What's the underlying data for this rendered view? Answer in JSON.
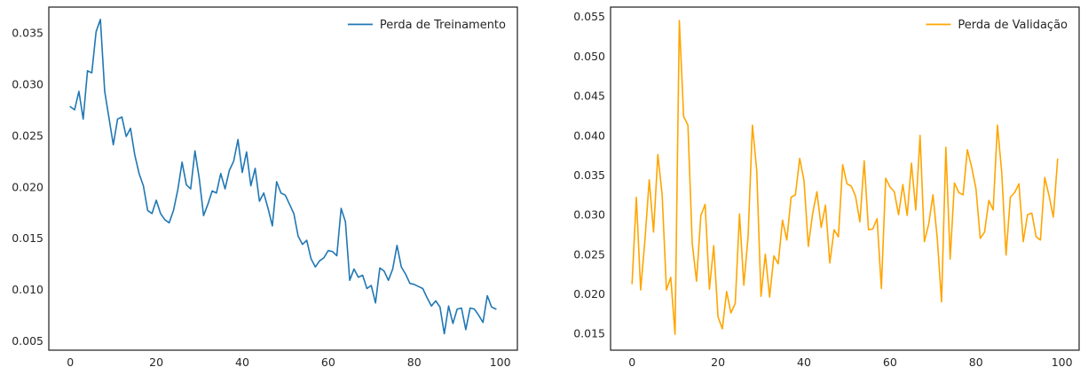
{
  "chart_data": [
    {
      "type": "line",
      "title": "",
      "xlabel": "",
      "ylabel": "",
      "xlim": [
        -5,
        104
      ],
      "ylim": [
        0.0041,
        0.0375
      ],
      "xticks": [
        0,
        20,
        40,
        60,
        80,
        100
      ],
      "xtick_labels": [
        "0",
        "20",
        "40",
        "60",
        "80",
        "100"
      ],
      "yticks": [
        0.005,
        0.01,
        0.015,
        0.02,
        0.025,
        0.03,
        0.035
      ],
      "ytick_labels": [
        "0.005",
        "0.010",
        "0.015",
        "0.020",
        "0.025",
        "0.030",
        "0.035"
      ],
      "grid": false,
      "legend": "top-right",
      "series": [
        {
          "name": "Perda de Treinamento",
          "color": "#1f77b4",
          "x": [
            0,
            1,
            2,
            3,
            4,
            5,
            6,
            7,
            8,
            9,
            10,
            11,
            12,
            13,
            14,
            15,
            16,
            17,
            18,
            19,
            20,
            21,
            22,
            23,
            24,
            25,
            26,
            27,
            28,
            29,
            30,
            31,
            32,
            33,
            34,
            35,
            36,
            37,
            38,
            39,
            40,
            41,
            42,
            43,
            44,
            45,
            46,
            47,
            48,
            49,
            50,
            51,
            52,
            53,
            54,
            55,
            56,
            57,
            58,
            59,
            60,
            61,
            62,
            63,
            64,
            65,
            66,
            67,
            68,
            69,
            70,
            71,
            72,
            73,
            74,
            75,
            76,
            77,
            78,
            79,
            80,
            81,
            82,
            83,
            84,
            85,
            86,
            87,
            88,
            89,
            90,
            91,
            92,
            93,
            94,
            95,
            96,
            97,
            98,
            99
          ],
          "values": [
            0.0278,
            0.0275,
            0.0293,
            0.0266,
            0.0313,
            0.0311,
            0.0351,
            0.0363,
            0.0293,
            0.0267,
            0.0241,
            0.0266,
            0.0268,
            0.0249,
            0.0257,
            0.0231,
            0.0213,
            0.0201,
            0.0177,
            0.0174,
            0.0187,
            0.0174,
            0.0168,
            0.0165,
            0.0177,
            0.0197,
            0.0224,
            0.0202,
            0.0198,
            0.0235,
            0.0208,
            0.0172,
            0.0183,
            0.0196,
            0.0194,
            0.0213,
            0.0198,
            0.0216,
            0.0225,
            0.0246,
            0.0214,
            0.0234,
            0.0201,
            0.0218,
            0.0186,
            0.0194,
            0.0179,
            0.0162,
            0.0205,
            0.0194,
            0.0192,
            0.0183,
            0.0174,
            0.0152,
            0.0144,
            0.0148,
            0.013,
            0.0122,
            0.0128,
            0.0131,
            0.0138,
            0.0137,
            0.0133,
            0.0179,
            0.0166,
            0.0109,
            0.012,
            0.0112,
            0.0114,
            0.0101,
            0.0104,
            0.0087,
            0.0121,
            0.0118,
            0.0109,
            0.012,
            0.0143,
            0.0122,
            0.0115,
            0.0106,
            0.0105,
            0.0103,
            0.0101,
            0.0092,
            0.0084,
            0.0089,
            0.0083,
            0.0057,
            0.0084,
            0.0067,
            0.0081,
            0.0082,
            0.0061,
            0.0082,
            0.0081,
            0.0075,
            0.0068,
            0.0094,
            0.0083,
            0.0081
          ]
        }
      ]
    },
    {
      "type": "line",
      "title": "",
      "xlabel": "",
      "ylabel": "",
      "xlim": [
        -5,
        104
      ],
      "ylim": [
        0.0129,
        0.0562
      ],
      "xticks": [
        0,
        20,
        40,
        60,
        80,
        100
      ],
      "xtick_labels": [
        "0",
        "20",
        "40",
        "60",
        "80",
        "100"
      ],
      "yticks": [
        0.015,
        0.02,
        0.025,
        0.03,
        0.035,
        0.04,
        0.045,
        0.05,
        0.055
      ],
      "ytick_labels": [
        "0.015",
        "0.020",
        "0.025",
        "0.030",
        "0.035",
        "0.040",
        "0.045",
        "0.050",
        "0.055"
      ],
      "grid": false,
      "legend": "top-right",
      "series": [
        {
          "name": "Perda de Validação",
          "color": "#ffa500",
          "x": [
            0,
            1,
            2,
            3,
            4,
            5,
            6,
            7,
            8,
            9,
            10,
            11,
            12,
            13,
            14,
            15,
            16,
            17,
            18,
            19,
            20,
            21,
            22,
            23,
            24,
            25,
            26,
            27,
            28,
            29,
            30,
            31,
            32,
            33,
            34,
            35,
            36,
            37,
            38,
            39,
            40,
            41,
            42,
            43,
            44,
            45,
            46,
            47,
            48,
            49,
            50,
            51,
            52,
            53,
            54,
            55,
            56,
            57,
            58,
            59,
            60,
            61,
            62,
            63,
            64,
            65,
            66,
            67,
            68,
            69,
            70,
            71,
            72,
            73,
            74,
            75,
            76,
            77,
            78,
            79,
            80,
            81,
            82,
            83,
            84,
            85,
            86,
            87,
            88,
            89,
            90,
            91,
            92,
            93,
            94,
            95,
            96,
            97,
            98,
            99
          ],
          "values": [
            0.0213,
            0.0322,
            0.0205,
            0.0268,
            0.0344,
            0.0278,
            0.0376,
            0.0325,
            0.0205,
            0.0221,
            0.0149,
            0.0545,
            0.0424,
            0.0413,
            0.0264,
            0.0216,
            0.0299,
            0.0313,
            0.0206,
            0.0261,
            0.0171,
            0.0156,
            0.0203,
            0.0176,
            0.0188,
            0.0301,
            0.0211,
            0.0273,
            0.0413,
            0.0356,
            0.0197,
            0.025,
            0.0196,
            0.0248,
            0.0238,
            0.0293,
            0.0268,
            0.0322,
            0.0325,
            0.0371,
            0.0343,
            0.026,
            0.0301,
            0.0329,
            0.0284,
            0.0312,
            0.0239,
            0.0281,
            0.0272,
            0.0363,
            0.0339,
            0.0336,
            0.0323,
            0.0291,
            0.0368,
            0.0281,
            0.0282,
            0.0295,
            0.0207,
            0.0346,
            0.0335,
            0.0329,
            0.03,
            0.0338,
            0.0299,
            0.0365,
            0.0306,
            0.04,
            0.0266,
            0.0288,
            0.0325,
            0.027,
            0.019,
            0.0385,
            0.0244,
            0.034,
            0.0328,
            0.0325,
            0.0382,
            0.036,
            0.0333,
            0.027,
            0.0278,
            0.0318,
            0.0306,
            0.0413,
            0.0353,
            0.0249,
            0.0322,
            0.0328,
            0.0339,
            0.0266,
            0.03,
            0.0302,
            0.0272,
            0.0268,
            0.0347,
            0.0324,
            0.0297,
            0.037
          ]
        }
      ]
    }
  ]
}
